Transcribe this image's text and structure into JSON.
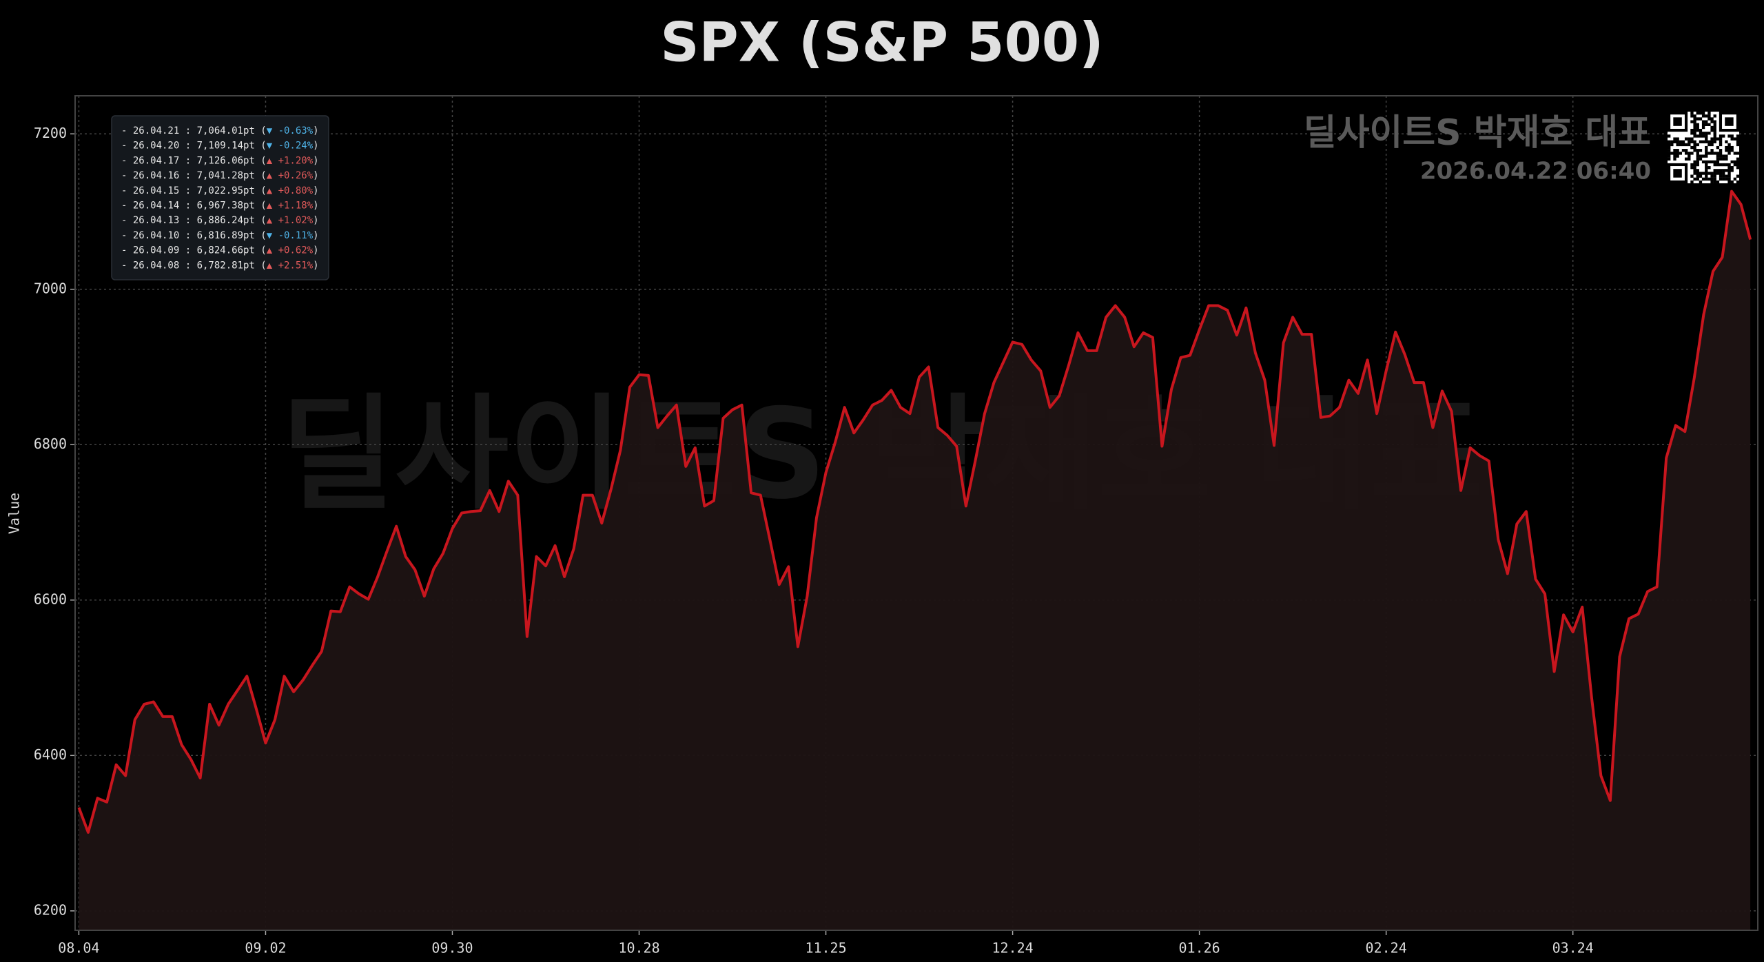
{
  "chart_data": {
    "type": "line",
    "title": "SPX (S&P 500)",
    "y_label": "Value",
    "watermark": "딜사이트S 박재호 대표",
    "brand": "딜사이트S 박재호 대표",
    "timestamp": "2026.04.22 06:40",
    "categories": [
      "08.04",
      null,
      null,
      null,
      null,
      null,
      null,
      null,
      null,
      null,
      null,
      null,
      null,
      null,
      null,
      null,
      null,
      null,
      null,
      null,
      "09.02",
      null,
      null,
      null,
      null,
      null,
      null,
      null,
      null,
      null,
      null,
      null,
      null,
      null,
      null,
      null,
      null,
      null,
      null,
      null,
      "09.30",
      null,
      null,
      null,
      null,
      null,
      null,
      null,
      null,
      null,
      null,
      null,
      null,
      null,
      null,
      null,
      null,
      null,
      null,
      null,
      "10.28",
      null,
      null,
      null,
      null,
      null,
      null,
      null,
      null,
      null,
      null,
      null,
      null,
      null,
      null,
      null,
      null,
      null,
      null,
      null,
      "11.25",
      null,
      null,
      null,
      null,
      null,
      null,
      null,
      null,
      null,
      null,
      null,
      null,
      null,
      null,
      null,
      null,
      null,
      null,
      null,
      "12.24",
      null,
      null,
      null,
      null,
      null,
      null,
      null,
      null,
      null,
      null,
      null,
      null,
      null,
      null,
      null,
      null,
      null,
      null,
      null,
      "01.26",
      null,
      null,
      null,
      null,
      null,
      null,
      null,
      null,
      null,
      null,
      null,
      null,
      null,
      null,
      null,
      null,
      null,
      null,
      null,
      "02.24",
      null,
      null,
      null,
      null,
      null,
      null,
      null,
      null,
      null,
      null,
      null,
      null,
      null,
      null,
      null,
      null,
      null,
      null,
      null,
      "03.24",
      null,
      null,
      null,
      null,
      null,
      null,
      null,
      null,
      null,
      null,
      null,
      null,
      null,
      null,
      null,
      null,
      null,
      null,
      null
    ],
    "series": [
      {
        "color": "#c8161e",
        "fill": "#1e1313",
        "values": [
          6333,
          6301,
          6345,
          6340,
          6388,
          6374,
          6446,
          6466,
          6469,
          6450,
          6450,
          6414,
          6395,
          6371,
          6466,
          6439,
          6466,
          6484,
          6502,
          6460,
          6416,
          6446,
          6502,
          6482,
          6497,
          6516,
          6534,
          6586,
          6585,
          6617,
          6608,
          6601,
          6630,
          6663,
          6695,
          6656,
          6639,
          6605,
          6640,
          6660,
          6692,
          6712,
          6714,
          6715,
          6741,
          6714,
          6753,
          6735,
          6553,
          6656,
          6644,
          6670,
          6630,
          6666,
          6735,
          6735,
          6699,
          6743,
          6793,
          6874,
          6890,
          6889,
          6822,
          6837,
          6851,
          6772,
          6796,
          6721,
          6728,
          6834,
          6845,
          6851,
          6738,
          6735,
          6678,
          6620,
          6643,
          6540,
          6605,
          6706,
          6764,
          6803,
          6848,
          6815,
          6832,
          6851,
          6857,
          6870,
          6848,
          6840,
          6887,
          6900,
          6822,
          6812,
          6798,
          6721,
          6779,
          6840,
          6880,
          6906,
          6932,
          6929,
          6909,
          6895,
          6848,
          6863,
          6902,
          6944,
          6921,
          6921,
          6964,
          6979,
          6964,
          6926,
          6944,
          6938,
          6798,
          6871,
          6912,
          6915,
          6948,
          6979,
          6979,
          6973,
          6941,
          6976,
          6918,
          6883,
          6799,
          6931,
          6964,
          6942,
          6942,
          6835,
          6837,
          6848,
          6883,
          6866,
          6909,
          6840,
          6895,
          6945,
          6916,
          6880,
          6880,
          6822,
          6869,
          6843,
          6741,
          6796,
          6786,
          6779,
          6678,
          6634,
          6698,
          6714,
          6627,
          6608,
          6508,
          6581,
          6559,
          6591,
          6475,
          6374,
          6342,
          6527,
          6576,
          6582,
          6611,
          6617,
          6782.81,
          6824.66,
          6816.89,
          6886.24,
          6967.38,
          7022.95,
          7041.28,
          7126.06,
          7109.14,
          7064.01
        ]
      }
    ],
    "xlim": [
      -0.4,
      179.8
    ],
    "ylim": [
      6175,
      7249
    ],
    "yticks": [
      6200,
      6400,
      6600,
      6800,
      7000,
      7200
    ],
    "grid": true,
    "legend_entries": [
      {
        "label": "- 26.04.21 : 7,064.01pt (",
        "change": "▼ -0.63%",
        "end": ")",
        "color": "#4fb3e8"
      },
      {
        "label": "- 26.04.20 : 7,109.14pt (",
        "change": "▼ -0.24%",
        "end": ")",
        "color": "#4fb3e8"
      },
      {
        "label": "- 26.04.17 : 7,126.06pt (",
        "change": "▲ +1.20%",
        "end": ")",
        "color": "#e05a5a"
      },
      {
        "label": "- 26.04.16 : 7,041.28pt (",
        "change": "▲ +0.26%",
        "end": ")",
        "color": "#e05a5a"
      },
      {
        "label": "- 26.04.15 : 7,022.95pt (",
        "change": "▲ +0.80%",
        "end": ")",
        "color": "#e05a5a"
      },
      {
        "label": "- 26.04.14 : 6,967.38pt (",
        "change": "▲ +1.18%",
        "end": ")",
        "color": "#e05a5a"
      },
      {
        "label": "- 26.04.13 : 6,886.24pt (",
        "change": "▲ +1.02%",
        "end": ")",
        "color": "#e05a5a"
      },
      {
        "label": "- 26.04.10 : 6,816.89pt (",
        "change": "▼ -0.11%",
        "end": ")",
        "color": "#4fb3e8"
      },
      {
        "label": "- 26.04.09 : 6,824.66pt (",
        "change": "▲ +0.62%",
        "end": ")",
        "color": "#e05a5a"
      },
      {
        "label": "- 26.04.08 : 6,782.81pt (",
        "change": "▲ +2.51%",
        "end": ")",
        "color": "#e05a5a"
      }
    ]
  }
}
